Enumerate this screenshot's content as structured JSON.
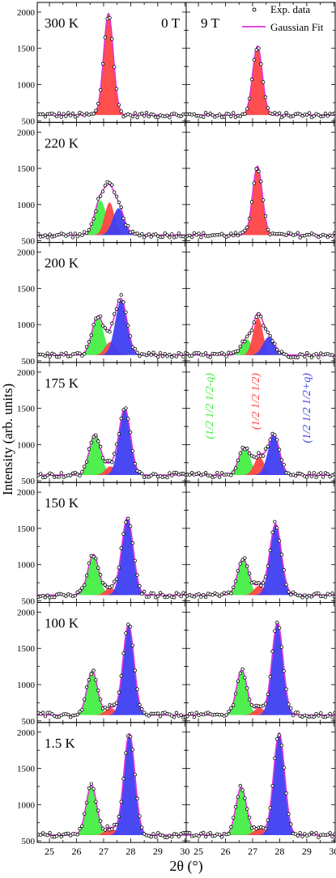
{
  "chart_data": {
    "type": "line",
    "ylabel": "Intensity (arb. units)",
    "xlabel": "2θ (°)",
    "xlim": [
      24.55,
      30.05
    ],
    "ylim": [
      500,
      2100
    ],
    "x_ticks": [
      "25",
      "26",
      "27",
      "28",
      "29",
      "30"
    ],
    "y_ticks": [
      "500",
      "1000",
      "1500",
      "2000"
    ],
    "column_labels": [
      "0 T",
      "9 T"
    ],
    "row_labels": [
      "300 K",
      "220 K",
      "200 K",
      "175 K",
      "150 K",
      "100 K",
      "1.5 K"
    ],
    "legend": {
      "position": "top-right",
      "entries": [
        "Exp. data",
        "Gaussian Fit"
      ]
    },
    "peak_labels": [
      "(1/2 1/2 1/2-q)",
      "(1/2 1/2 1/2)",
      "(1/2 1/2 1/2+q)"
    ],
    "colors": {
      "green_peak": "#44ee44",
      "red_peak": "#ff4444",
      "blue_peak": "#3f3ff2",
      "fit_line": "#dd33dd",
      "data_marker": "#000000"
    },
    "background_level": 580,
    "peak_centers_2theta": {
      "lower_satellite": 26.62,
      "commensurate": 27.18,
      "upper_satellite": 27.88
    },
    "panels": [
      {
        "row": "300 K",
        "field": "0 T",
        "peaks": [
          {
            "type": "red",
            "center": 27.18,
            "height": 1400,
            "fwhm": 0.42
          }
        ]
      },
      {
        "row": "300 K",
        "field": "9 T",
        "peaks": [
          {
            "type": "red",
            "center": 27.18,
            "height": 950,
            "fwhm": 0.42
          }
        ]
      },
      {
        "row": "220 K",
        "field": "0 T",
        "peaks": [
          {
            "type": "green",
            "center": 26.88,
            "height": 480,
            "fwhm": 0.5
          },
          {
            "type": "red",
            "center": 27.22,
            "height": 450,
            "fwhm": 0.42
          },
          {
            "type": "blue",
            "center": 27.55,
            "height": 370,
            "fwhm": 0.5
          }
        ]
      },
      {
        "row": "220 K",
        "field": "9 T",
        "peaks": [
          {
            "type": "red",
            "center": 27.18,
            "height": 950,
            "fwhm": 0.42
          }
        ]
      },
      {
        "row": "200 K",
        "field": "0 T",
        "peaks": [
          {
            "type": "green",
            "center": 26.78,
            "height": 530,
            "fwhm": 0.5
          },
          {
            "type": "red",
            "center": 27.25,
            "height": 180,
            "fwhm": 0.45
          },
          {
            "type": "blue",
            "center": 27.65,
            "height": 760,
            "fwhm": 0.52
          }
        ]
      },
      {
        "row": "200 K",
        "field": "9 T",
        "peaks": [
          {
            "type": "green",
            "center": 26.78,
            "height": 220,
            "fwhm": 0.45
          },
          {
            "type": "red",
            "center": 27.2,
            "height": 520,
            "fwhm": 0.42
          },
          {
            "type": "blue",
            "center": 27.6,
            "height": 250,
            "fwhm": 0.5
          }
        ]
      },
      {
        "row": "175 K",
        "field": "0 T",
        "peaks": [
          {
            "type": "green",
            "center": 26.68,
            "height": 560,
            "fwhm": 0.5
          },
          {
            "type": "red",
            "center": 27.25,
            "height": 120,
            "fwhm": 0.45
          },
          {
            "type": "blue",
            "center": 27.78,
            "height": 920,
            "fwhm": 0.5
          }
        ]
      },
      {
        "row": "175 K",
        "field": "9 T",
        "peaks": [
          {
            "type": "green",
            "center": 26.7,
            "height": 380,
            "fwhm": 0.5
          },
          {
            "type": "red",
            "center": 27.25,
            "height": 250,
            "fwhm": 0.45
          },
          {
            "type": "blue",
            "center": 27.78,
            "height": 560,
            "fwhm": 0.5
          }
        ]
      },
      {
        "row": "150 K",
        "field": "0 T",
        "peaks": [
          {
            "type": "green",
            "center": 26.62,
            "height": 560,
            "fwhm": 0.48
          },
          {
            "type": "red",
            "center": 27.25,
            "height": 100,
            "fwhm": 0.45
          },
          {
            "type": "blue",
            "center": 27.88,
            "height": 1070,
            "fwhm": 0.5
          }
        ]
      },
      {
        "row": "150 K",
        "field": "9 T",
        "peaks": [
          {
            "type": "green",
            "center": 26.65,
            "height": 500,
            "fwhm": 0.48
          },
          {
            "type": "red",
            "center": 27.25,
            "height": 130,
            "fwhm": 0.45
          },
          {
            "type": "blue",
            "center": 27.85,
            "height": 980,
            "fwhm": 0.5
          }
        ]
      },
      {
        "row": "100 K",
        "field": "0 T",
        "peaks": [
          {
            "type": "green",
            "center": 26.58,
            "height": 610,
            "fwhm": 0.46
          },
          {
            "type": "red",
            "center": 27.25,
            "height": 100,
            "fwhm": 0.45
          },
          {
            "type": "blue",
            "center": 27.92,
            "height": 1250,
            "fwhm": 0.48
          }
        ]
      },
      {
        "row": "100 K",
        "field": "9 T",
        "peaks": [
          {
            "type": "green",
            "center": 26.6,
            "height": 620,
            "fwhm": 0.46
          },
          {
            "type": "red",
            "center": 27.25,
            "height": 100,
            "fwhm": 0.45
          },
          {
            "type": "blue",
            "center": 27.92,
            "height": 1280,
            "fwhm": 0.48
          }
        ]
      },
      {
        "row": "1.5 K",
        "field": "0 T",
        "peaks": [
          {
            "type": "green",
            "center": 26.55,
            "height": 690,
            "fwhm": 0.46
          },
          {
            "type": "red",
            "center": 27.25,
            "height": 100,
            "fwhm": 0.45
          },
          {
            "type": "blue",
            "center": 27.95,
            "height": 1400,
            "fwhm": 0.48
          }
        ]
      },
      {
        "row": "1.5 K",
        "field": "9 T",
        "peaks": [
          {
            "type": "green",
            "center": 26.58,
            "height": 660,
            "fwhm": 0.46
          },
          {
            "type": "red",
            "center": 27.25,
            "height": 100,
            "fwhm": 0.45
          },
          {
            "type": "blue",
            "center": 27.98,
            "height": 1410,
            "fwhm": 0.48
          }
        ]
      }
    ]
  }
}
